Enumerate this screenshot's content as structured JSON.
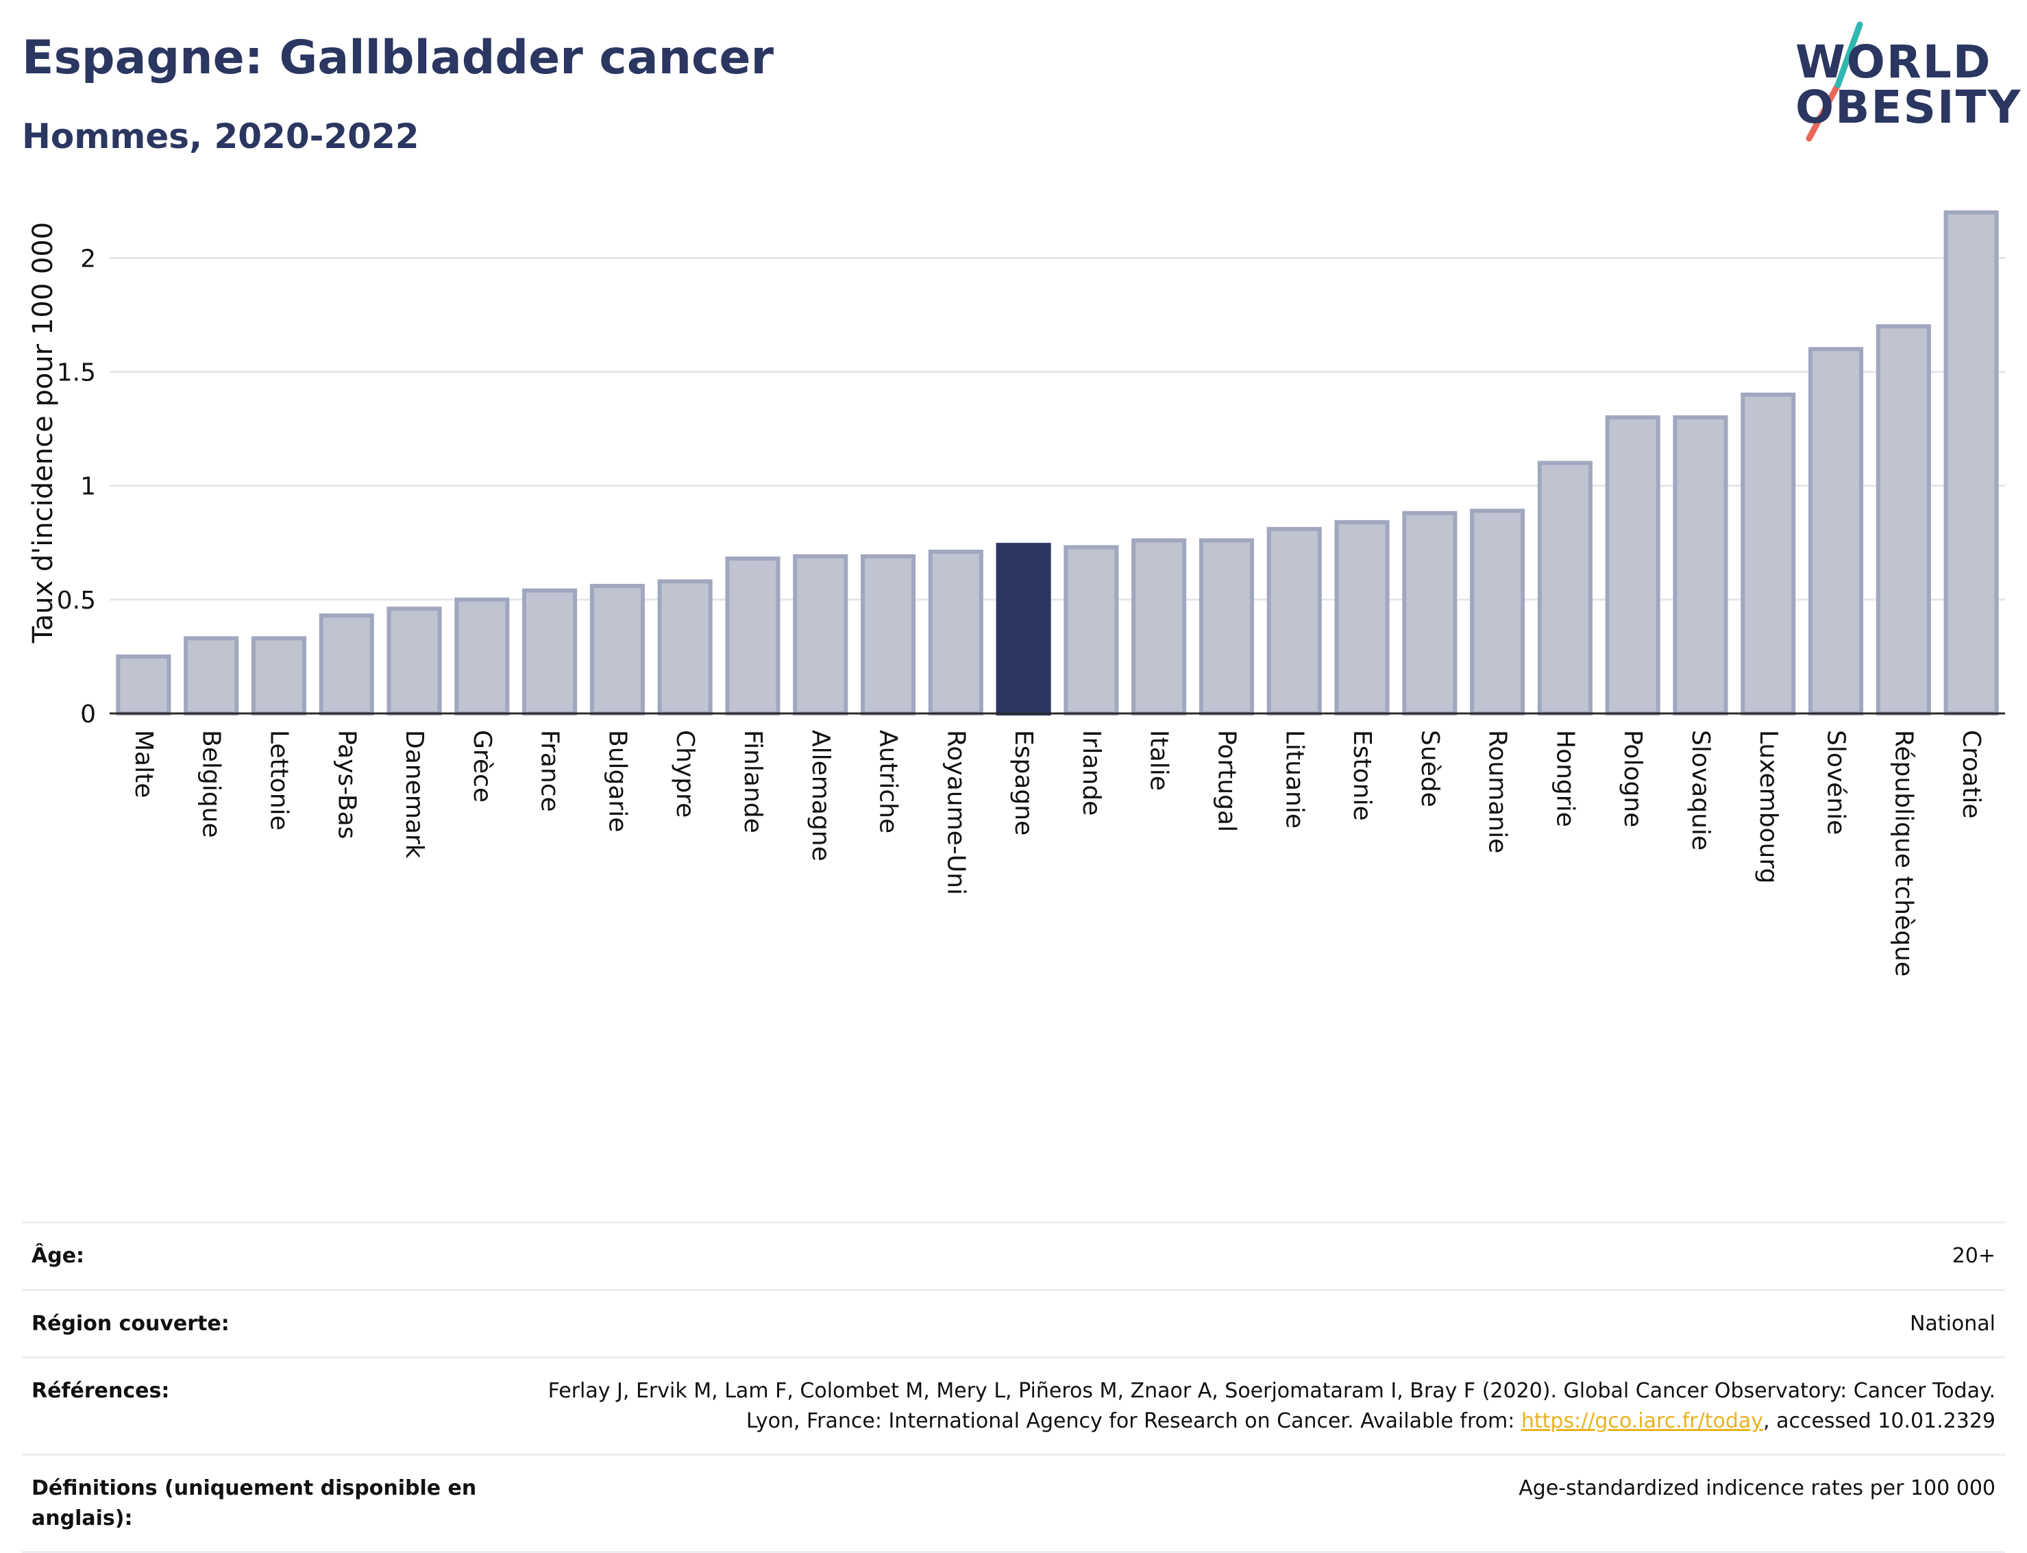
{
  "header": {
    "title": "Espagne: Gallbladder cancer",
    "subtitle": "Hommes, 2020-2022"
  },
  "logo": {
    "line1": "WORLD",
    "line2": "OBESITY",
    "colors": {
      "text": "#2b3661",
      "slash_top": "#2fb7b0",
      "slash_bottom": "#e8685a"
    }
  },
  "chart_data": {
    "type": "bar",
    "title": "",
    "xlabel": "",
    "ylabel": "Taux d'incidence pour 100 000",
    "ylim": [
      0,
      2.2
    ],
    "yticks": [
      0,
      0.5,
      1,
      1.5,
      2
    ],
    "ytick_labels": [
      "0",
      "0.5",
      "1",
      "1.5",
      "2"
    ],
    "grid": true,
    "highlight": "Espagne",
    "colors": {
      "bar": "#c0c3d0",
      "bar_border": "#a1a7bf",
      "highlight": "#2b3661",
      "grid": "#e4e6ec",
      "axis": "#2b2b2b"
    },
    "categories": [
      "Malte",
      "Belgique",
      "Lettonie",
      "Pays-Bas",
      "Danemark",
      "Grèce",
      "France",
      "Bulgarie",
      "Chypre",
      "Finlande",
      "Allemagne",
      "Autriche",
      "Royaume-Uni",
      "Espagne",
      "Irlande",
      "Italie",
      "Portugal",
      "Lituanie",
      "Estonie",
      "Suède",
      "Roumanie",
      "Hongrie",
      "Pologne",
      "Slovaquie",
      "Luxembourg",
      "Slovénie",
      "République tchèque",
      "Croatie"
    ],
    "values": [
      0.25,
      0.33,
      0.33,
      0.43,
      0.46,
      0.5,
      0.54,
      0.56,
      0.58,
      0.68,
      0.69,
      0.69,
      0.71,
      0.74,
      0.73,
      0.76,
      0.76,
      0.81,
      0.84,
      0.88,
      0.89,
      1.1,
      1.3,
      1.3,
      1.4,
      1.6,
      1.7,
      2.2
    ]
  },
  "info": {
    "rows": [
      {
        "label": "Âge:",
        "value": "20+"
      },
      {
        "label": "Région couverte:",
        "value": "National"
      }
    ],
    "references": {
      "label": "Références:",
      "text_before": "Ferlay J, Ervik M, Lam F, Colombet M, Mery L, Piñeros M, Znaor A, Soerjomataram I, Bray F (2020). Global Cancer Observatory: Cancer Today. Lyon, France: International Agency for Research on Cancer. Available from: ",
      "link": "https://gco.iarc.fr/today",
      "text_after": ", accessed 10.01.2329"
    },
    "definitions": {
      "label": "Définitions (uniquement disponible en anglais):",
      "value": "Age-standardized indicence rates per 100 000"
    }
  }
}
